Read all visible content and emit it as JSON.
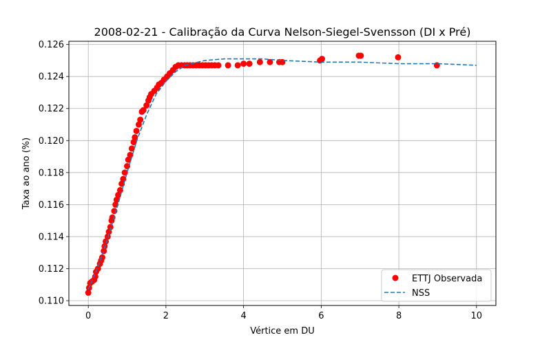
{
  "chart_data": {
    "type": "scatter",
    "title": "2008-02-21 - Calibração da Curva Nelson-Siegel-Svensson (DI x Pré)",
    "xlabel": "Vértice em DU",
    "ylabel": "Taxa ao ano (%)",
    "xlim": [
      -0.5,
      10.5
    ],
    "ylim": [
      0.1097,
      0.1262
    ],
    "xticks": [
      "0",
      "2",
      "4",
      "6",
      "8",
      "10"
    ],
    "xtick_values": [
      0,
      2,
      4,
      6,
      8,
      10
    ],
    "yticks": [
      "0.110",
      "0.112",
      "0.114",
      "0.116",
      "0.118",
      "0.120",
      "0.122",
      "0.124",
      "0.126"
    ],
    "ytick_values": [
      0.11,
      0.112,
      0.114,
      0.116,
      0.118,
      0.12,
      0.122,
      0.124,
      0.126
    ],
    "grid": true,
    "legend_position": "bottom-right",
    "series": [
      {
        "name": "ETTJ Observada",
        "kind": "scatter",
        "color": "#ff0000",
        "x": [
          0.0,
          0.02,
          0.05,
          0.1,
          0.15,
          0.18,
          0.2,
          0.25,
          0.3,
          0.33,
          0.36,
          0.4,
          0.42,
          0.45,
          0.5,
          0.53,
          0.57,
          0.6,
          0.62,
          0.67,
          0.7,
          0.73,
          0.77,
          0.82,
          0.86,
          0.9,
          0.94,
          1.0,
          1.03,
          1.08,
          1.12,
          1.17,
          1.2,
          1.24,
          1.3,
          1.34,
          1.38,
          1.42,
          1.5,
          1.55,
          1.58,
          1.62,
          1.7,
          1.77,
          1.82,
          1.88,
          1.95,
          2.03,
          2.1,
          2.18,
          2.25,
          2.32,
          2.4,
          2.48,
          2.55,
          2.62,
          2.7,
          2.78,
          2.86,
          2.94,
          3.02,
          3.1,
          3.18,
          3.26,
          3.35,
          3.6,
          3.85,
          4.0,
          4.15,
          4.42,
          4.68,
          4.92,
          5.0,
          5.97,
          6.02,
          6.97,
          7.02,
          7.98,
          8.98
        ],
        "y": [
          0.1105,
          0.1108,
          0.1111,
          0.1112,
          0.1113,
          0.1115,
          0.1118,
          0.112,
          0.1123,
          0.1125,
          0.1127,
          0.1131,
          0.1134,
          0.1137,
          0.114,
          0.1143,
          0.1146,
          0.115,
          0.1152,
          0.1156,
          0.116,
          0.1163,
          0.1166,
          0.1169,
          0.1173,
          0.1176,
          0.118,
          0.1184,
          0.1188,
          0.1191,
          0.1195,
          0.1199,
          0.1202,
          0.1206,
          0.121,
          0.1213,
          0.1218,
          0.1219,
          0.1222,
          0.1225,
          0.1227,
          0.1229,
          0.1231,
          0.1233,
          0.1235,
          0.1236,
          0.1238,
          0.124,
          0.1242,
          0.1244,
          0.1246,
          0.1247,
          0.1247,
          0.1247,
          0.1247,
          0.1247,
          0.1247,
          0.1247,
          0.1247,
          0.1247,
          0.1247,
          0.1247,
          0.1247,
          0.1247,
          0.1247,
          0.1247,
          0.1247,
          0.1248,
          0.1248,
          0.1249,
          0.1249,
          0.1249,
          0.1249,
          0.125,
          0.1251,
          0.1253,
          0.1253,
          0.1252,
          0.1247
        ]
      },
      {
        "name": "NSS",
        "kind": "line",
        "style": "dashed",
        "color": "#1f77b4",
        "x": [
          0.0,
          0.25,
          0.5,
          0.75,
          1.0,
          1.25,
          1.5,
          1.75,
          2.0,
          2.25,
          2.5,
          3.0,
          3.5,
          4.0,
          4.5,
          5.0,
          6.0,
          7.0,
          8.0,
          9.0,
          10.0
        ],
        "y": [
          0.1107,
          0.1121,
          0.1139,
          0.1159,
          0.118,
          0.12,
          0.1216,
          0.1229,
          0.1237,
          0.1243,
          0.1247,
          0.125,
          0.1251,
          0.1251,
          0.1251,
          0.125,
          0.1249,
          0.1249,
          0.1248,
          0.1248,
          0.1247
        ]
      }
    ]
  }
}
